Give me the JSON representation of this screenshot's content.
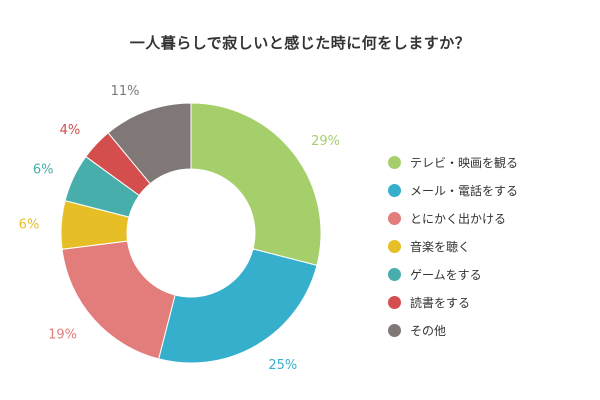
{
  "chart_data": {
    "type": "pie",
    "title": "一人暮らしで寂しいと感じた時に何をしますか？",
    "categories": [
      "テレビ・映画を観る",
      "メール・電話をする",
      "とにかく出かける",
      "音楽を聴く",
      "ゲームをする",
      "読書をする",
      "その他"
    ],
    "values": [
      29,
      25,
      19,
      6,
      6,
      4,
      11
    ],
    "value_labels": [
      "29%",
      "25%",
      "19%",
      "6%",
      "6%",
      "4%",
      "11%"
    ],
    "colors": [
      "#a5cf6b",
      "#36afcc",
      "#e27d7b",
      "#e6bf27",
      "#47aeab",
      "#d44e4e",
      "#7f7877"
    ],
    "legend_position": "right",
    "style": "donut"
  }
}
